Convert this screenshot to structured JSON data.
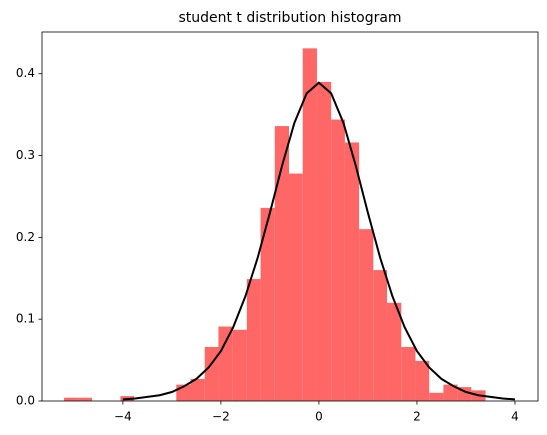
{
  "chart_data": {
    "type": "histogram",
    "title": "student t distribution histogram",
    "bins": [
      -5.2,
      -4.91,
      -4.63,
      -4.34,
      -4.05,
      -3.77,
      -3.48,
      -3.19,
      -2.91,
      -2.62,
      -2.33,
      -2.05,
      -1.76,
      -1.47,
      -1.19,
      -0.9,
      -0.61,
      -0.33,
      -0.04,
      0.25,
      0.53,
      0.82,
      1.11,
      1.39,
      1.68,
      1.97,
      2.25,
      2.54,
      2.83,
      3.11,
      3.4
    ],
    "values": [
      0.004,
      0.004,
      0,
      0,
      0.006,
      0,
      0,
      0,
      0.02,
      0.027,
      0.066,
      0.091,
      0.087,
      0.149,
      0.236,
      0.336,
      0.278,
      0.431,
      0.39,
      0.344,
      0.316,
      0.21,
      0.16,
      0.12,
      0.066,
      0.049,
      0.01,
      0.02,
      0.017,
      0.013
    ],
    "color": "#ff6666",
    "curve": {
      "x": [
        -4,
        -3.75,
        -3.5,
        -3.25,
        -3,
        -2.75,
        -2.5,
        -2.25,
        -2,
        -1.75,
        -1.5,
        -1.25,
        -1,
        -0.75,
        -0.5,
        -0.25,
        0,
        0.25,
        0.5,
        0.75,
        1,
        1.25,
        1.5,
        1.75,
        2,
        2.25,
        2.5,
        2.75,
        3,
        3.25,
        3.5,
        3.75,
        4
      ],
      "values": [
        0.002,
        0.003,
        0.005,
        0.007,
        0.011,
        0.018,
        0.027,
        0.041,
        0.061,
        0.09,
        0.128,
        0.175,
        0.23,
        0.288,
        0.34,
        0.376,
        0.389,
        0.376,
        0.34,
        0.288,
        0.23,
        0.175,
        0.128,
        0.09,
        0.061,
        0.041,
        0.027,
        0.018,
        0.011,
        0.007,
        0.005,
        0.003,
        0.002
      ],
      "color": "#000000"
    },
    "xlim": [
      -5.65,
      4.47
    ],
    "ylim": [
      0,
      0.451
    ],
    "xticks": [
      {
        "value": -4,
        "label": "−4"
      },
      {
        "value": -2,
        "label": "−2"
      },
      0,
      2,
      4
    ],
    "yticks": [
      {
        "value": 0,
        "label": "0.0"
      },
      0.1,
      0.2,
      0.3,
      0.4
    ]
  }
}
